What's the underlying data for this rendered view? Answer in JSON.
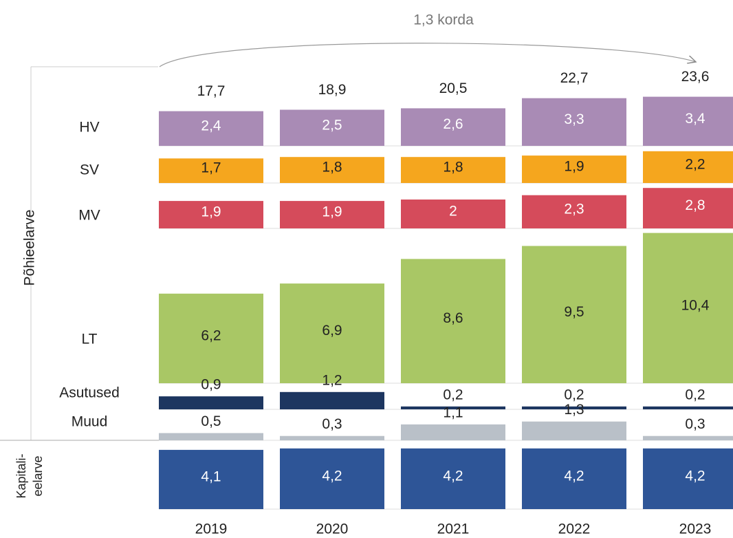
{
  "chart_data": {
    "type": "bar",
    "annotation": "1,3 korda",
    "categories": [
      "2019",
      "2020",
      "2021",
      "2022",
      "2023"
    ],
    "totals": {
      "values": [
        17.7,
        18.9,
        20.5,
        22.7,
        23.6
      ],
      "value_labels": [
        "17,7",
        "18,9",
        "20,5",
        "22,7",
        "23,6"
      ]
    },
    "groups": [
      {
        "label": "Põhieelarve"
      },
      {
        "label_lines": [
          "Kapitali-",
          "eelarve"
        ]
      }
    ],
    "series": [
      {
        "name": "HV",
        "color": "#a98bb5",
        "label_color": "#ffffff",
        "values": [
          2.4,
          2.5,
          2.6,
          3.3,
          3.4
        ],
        "value_labels": [
          "2,4",
          "2,5",
          "2,6",
          "3,3",
          "3,4"
        ]
      },
      {
        "name": "SV",
        "color": "#f5a61e",
        "label_color": "#222222",
        "values": [
          1.7,
          1.8,
          1.8,
          1.9,
          2.2
        ],
        "value_labels": [
          "1,7",
          "1,8",
          "1,8",
          "1,9",
          "2,2"
        ]
      },
      {
        "name": "MV",
        "color": "#d54b5b",
        "label_color": "#ffffff",
        "values": [
          1.9,
          1.9,
          2,
          2.3,
          2.8
        ],
        "value_labels": [
          "1,9",
          "1,9",
          "2",
          "2,3",
          "2,8"
        ]
      },
      {
        "name": "LT",
        "color": "#a9c765",
        "label_color": "#222222",
        "values": [
          6.2,
          6.9,
          8.6,
          9.5,
          10.4
        ],
        "value_labels": [
          "6,2",
          "6,9",
          "8,6",
          "9,5",
          "10,4"
        ]
      },
      {
        "name": "Asutused",
        "color": "#1d3660",
        "label_color": "#222222",
        "values": [
          0.9,
          1.2,
          0.2,
          0.2,
          0.2
        ],
        "value_labels": [
          "0,9",
          "1,2",
          "0,2",
          "0,2",
          "0,2"
        ]
      },
      {
        "name": "Muud",
        "color": "#b9c0c8",
        "label_color": "#222222",
        "values": [
          0.5,
          0.3,
          1.1,
          1.3,
          0.3
        ],
        "value_labels": [
          "0,5",
          "0,3",
          "1,1",
          "1,3",
          "0,3"
        ]
      },
      {
        "color": "#2e5597",
        "label_color": "#ffffff",
        "values": [
          4.1,
          4.2,
          4.2,
          4.2,
          4.2
        ],
        "value_labels": [
          "4,1",
          "4,2",
          "4,2",
          "4,2",
          "4,2"
        ]
      }
    ]
  }
}
